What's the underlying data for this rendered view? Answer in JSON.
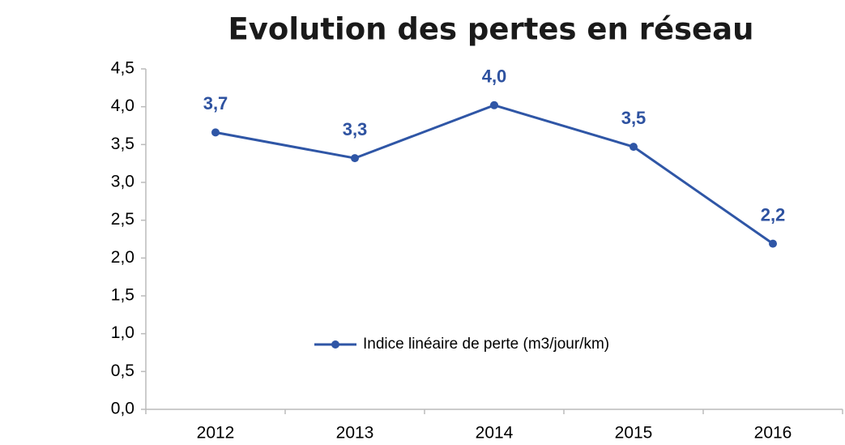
{
  "chart_data": {
    "type": "line",
    "title": "Evolution des pertes en réseau",
    "categories": [
      "2012",
      "2013",
      "2014",
      "2015",
      "2016"
    ],
    "series": [
      {
        "name": "Indice linéaire de perte (m3/jour/km)",
        "color": "#2f56a6",
        "values": [
          3.66,
          3.32,
          4.02,
          3.47,
          2.19
        ],
        "value_labels": [
          "3,7",
          "3,3",
          "4,0",
          "3,5",
          "2,2"
        ]
      }
    ],
    "ylim": [
      0,
      4.5
    ],
    "yticks": [
      {
        "value": 0,
        "label": "0,0"
      },
      {
        "value": 0.5,
        "label": "0,5"
      },
      {
        "value": 1,
        "label": "1,0"
      },
      {
        "value": 1.5,
        "label": "1,5"
      },
      {
        "value": 2,
        "label": "2,0"
      },
      {
        "value": 2.5,
        "label": "2,5"
      },
      {
        "value": 3,
        "label": "3,0"
      },
      {
        "value": 3.5,
        "label": "3,5"
      },
      {
        "value": 4,
        "label": "4,0"
      },
      {
        "value": 4.5,
        "label": "4,5"
      }
    ],
    "grid": false,
    "legend": "center"
  }
}
